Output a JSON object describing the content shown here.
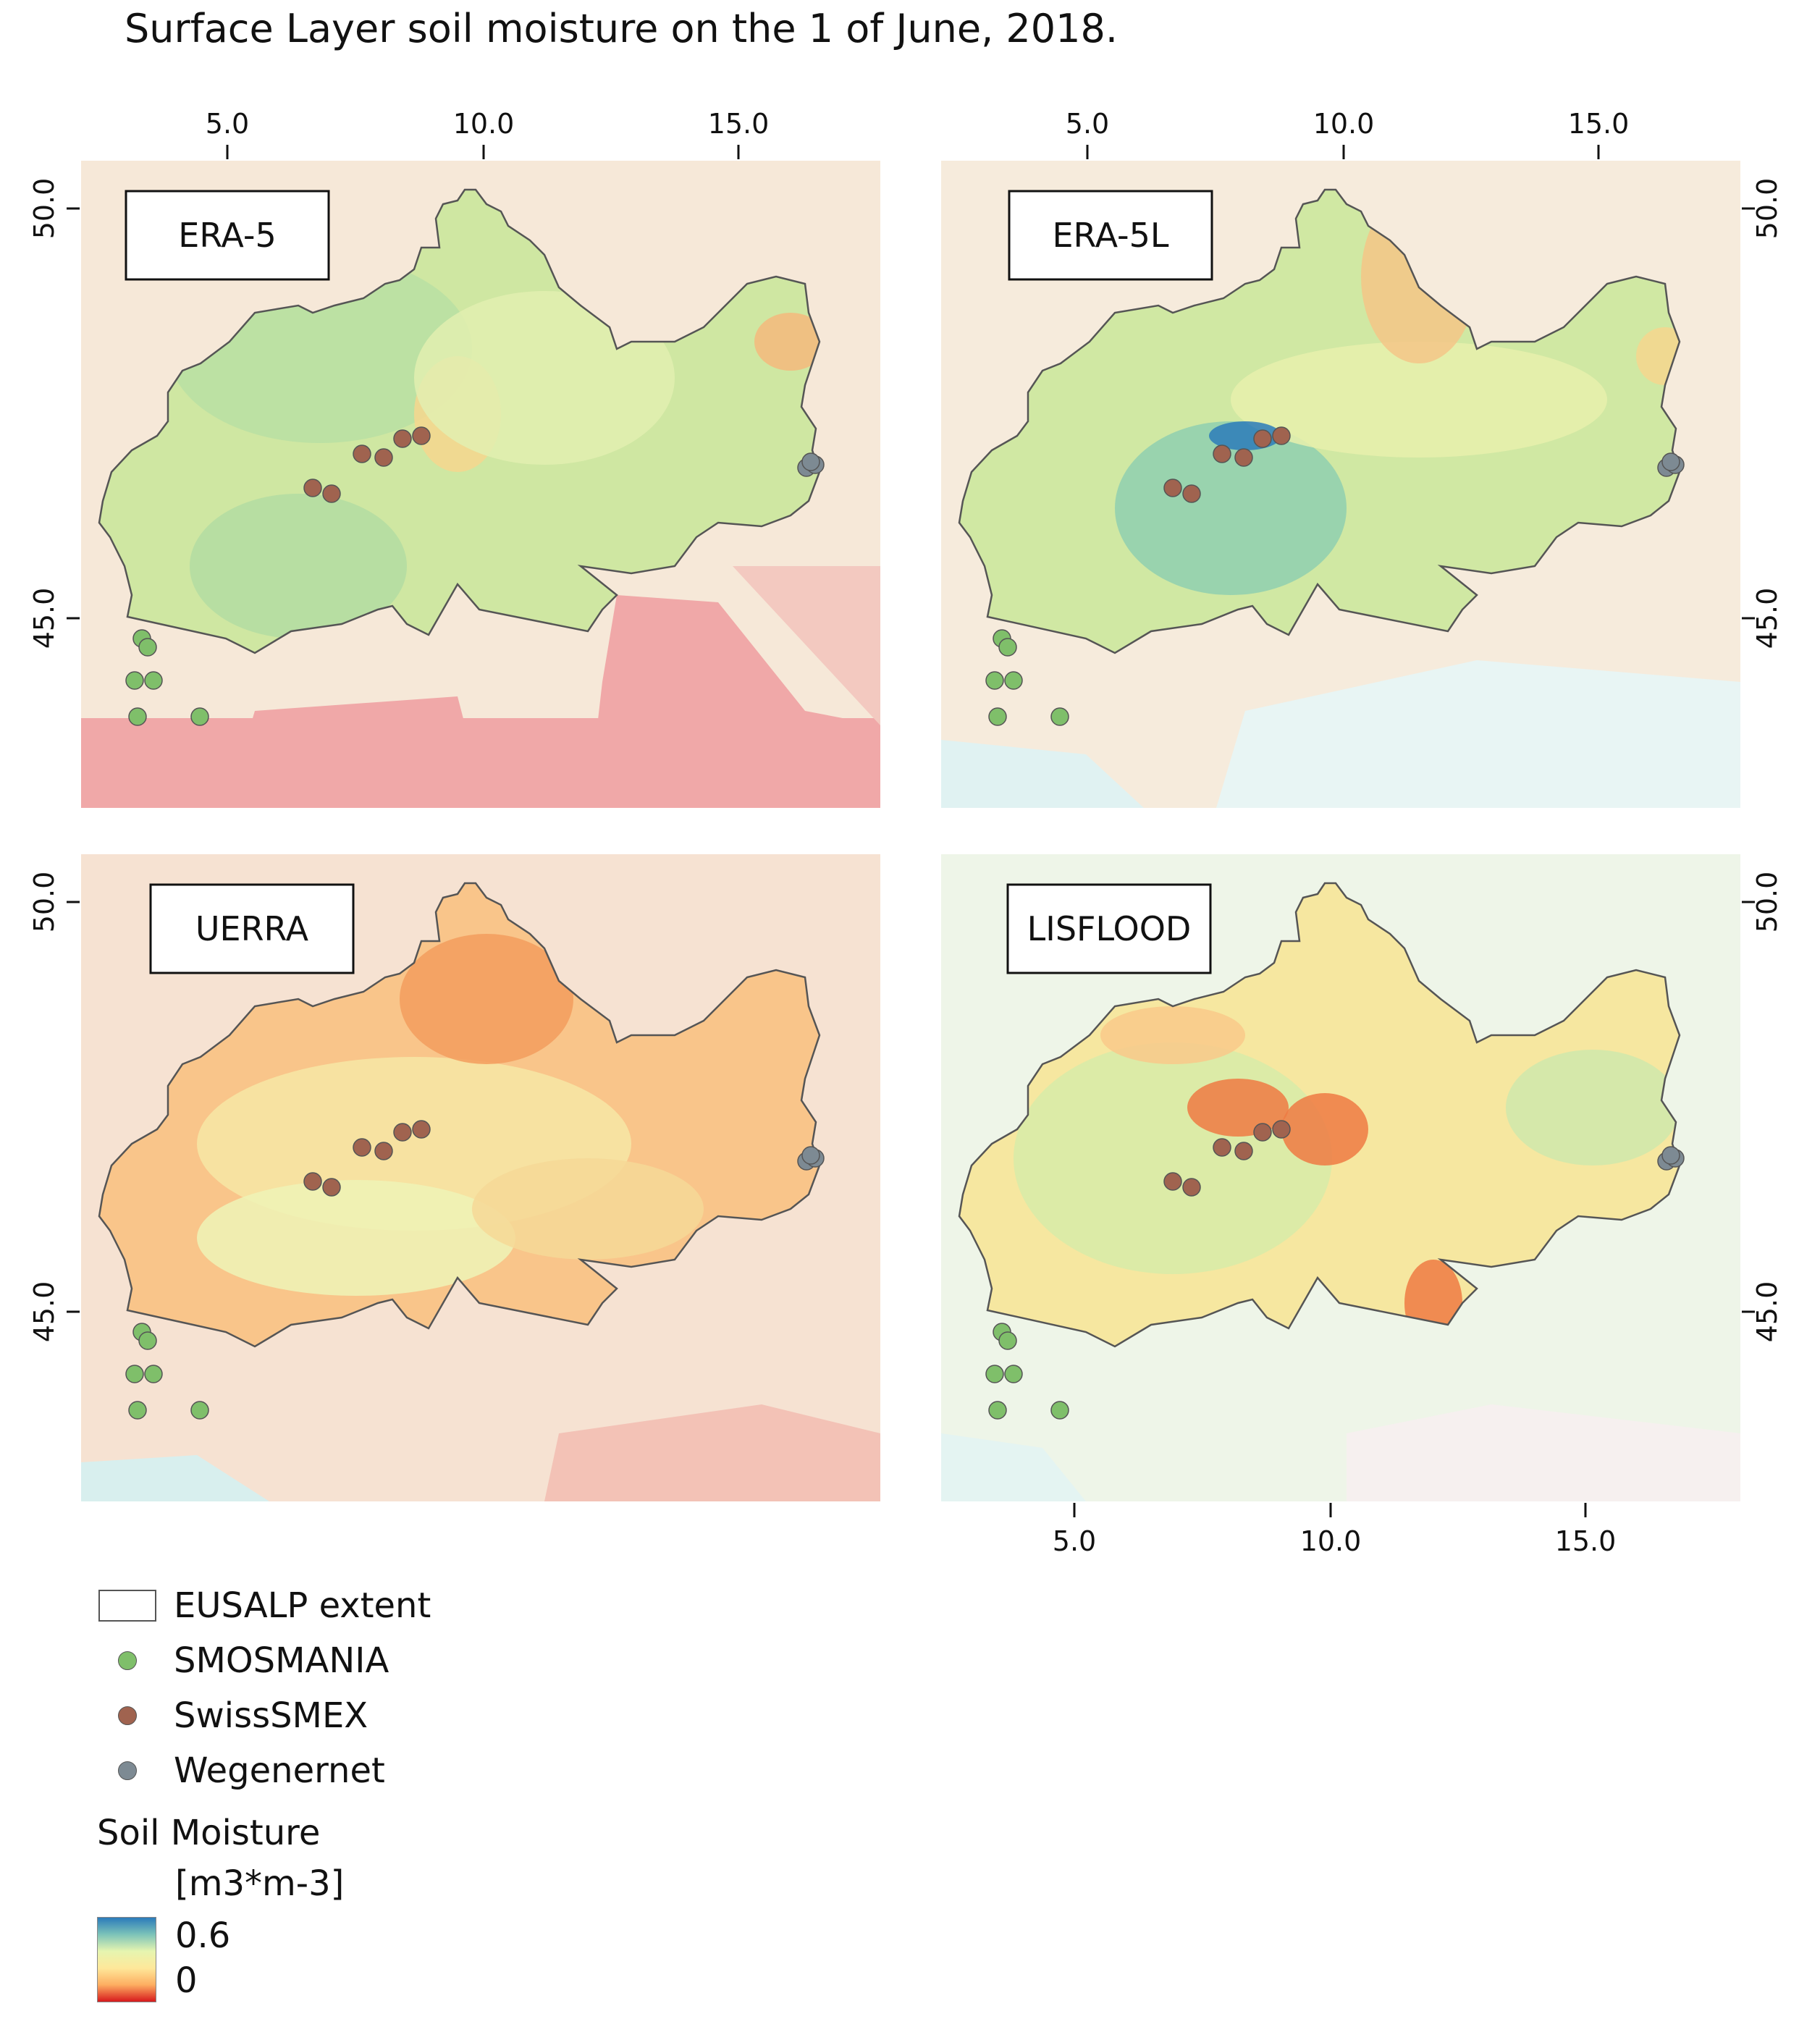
{
  "title": "Surface Layer soil moisture on the 1 of June, 2018.",
  "panels": [
    {
      "label": "ERA-5",
      "top_ticks": [
        "5.0",
        "10.0",
        "15.0"
      ],
      "left_ticks": [
        "50.0",
        "45.0"
      ],
      "right_ticks": [],
      "bottom_ticks": [],
      "scheme": "era5"
    },
    {
      "label": "ERA-5L",
      "top_ticks": [
        "5.0",
        "10.0",
        "15.0"
      ],
      "left_ticks": [],
      "right_ticks": [
        "50.0",
        "45.0"
      ],
      "bottom_ticks": [],
      "scheme": "era5l"
    },
    {
      "label": "UERRA",
      "top_ticks": [],
      "left_ticks": [
        "50.0",
        "45.0"
      ],
      "right_ticks": [],
      "bottom_ticks": [],
      "scheme": "uerra"
    },
    {
      "label": "LISFLOOD",
      "top_ticks": [],
      "left_ticks": [],
      "right_ticks": [
        "50.0",
        "45.0"
      ],
      "bottom_ticks": [
        "5.0",
        "10.0",
        "15.0"
      ],
      "scheme": "lisflood"
    }
  ],
  "legend": {
    "extent_label": "EUSALP extent",
    "networks": [
      {
        "name": "SMOSMANIA",
        "color": "#7fbf6a"
      },
      {
        "name": "SwissSMEX",
        "color": "#a0634f"
      },
      {
        "name": "Wegenernet",
        "color": "#7d8a93"
      }
    ],
    "colorbar_title": "Soil Moisture",
    "colorbar_units": "[m3*m-3]",
    "colorbar_max": "0.6",
    "colorbar_min": "0"
  },
  "colors": {
    "sea": "#d6efef",
    "land_bg": "#f6e8d8",
    "low": "#d7191c",
    "mid": "#fee89a",
    "high": "#2b7bba",
    "outline": "#555555"
  }
}
